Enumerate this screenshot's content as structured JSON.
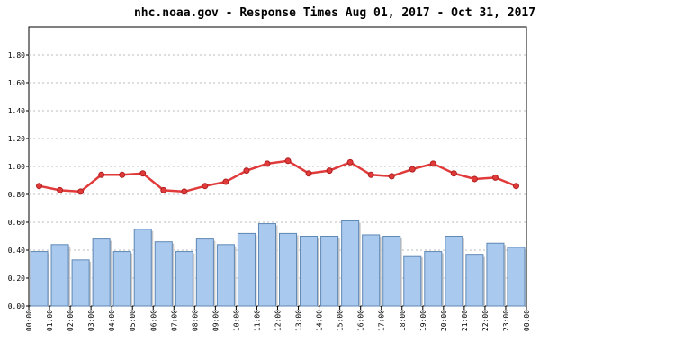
{
  "chart_data": {
    "type": "bar+line",
    "title": "nhc.noaa.gov - Response Times Aug 01, 2017 - Oct 31, 2017",
    "xlabel": "",
    "ylabel": "",
    "x_tick_labels": [
      "00:00",
      "01:00",
      "02:00",
      "03:00",
      "04:00",
      "05:00",
      "06:00",
      "07:00",
      "08:00",
      "09:00",
      "10:00",
      "11:00",
      "12:00",
      "13:00",
      "14:00",
      "15:00",
      "16:00",
      "17:00",
      "18:00",
      "19:00",
      "20:00",
      "21:00",
      "22:00",
      "23:00",
      "00:00"
    ],
    "y_ticks": [
      "0.00",
      "0.20",
      "0.40",
      "0.60",
      "0.80",
      "1.00",
      "1.20",
      "1.40",
      "1.60",
      "1.80"
    ],
    "ylim": [
      0,
      2.0
    ],
    "grid": "horizontal dashed",
    "series": [
      {
        "kind": "bar",
        "color": "#a9c9ef",
        "edge_color": "#5f88b5",
        "values": [
          0.39,
          0.44,
          0.33,
          0.48,
          0.39,
          0.55,
          0.46,
          0.39,
          0.48,
          0.44,
          0.52,
          0.59,
          0.52,
          0.5,
          0.5,
          0.61,
          0.51,
          0.5,
          0.36,
          0.39,
          0.5,
          0.37,
          0.45,
          0.42
        ]
      },
      {
        "kind": "line",
        "color": "#e03a3a",
        "values": [
          0.86,
          0.83,
          0.82,
          0.94,
          0.94,
          0.95,
          0.83,
          0.82,
          0.86,
          0.89,
          0.97,
          1.02,
          1.04,
          0.95,
          0.97,
          1.03,
          0.94,
          0.93,
          0.98,
          1.02,
          0.95,
          0.91,
          0.92,
          0.86
        ]
      }
    ]
  }
}
